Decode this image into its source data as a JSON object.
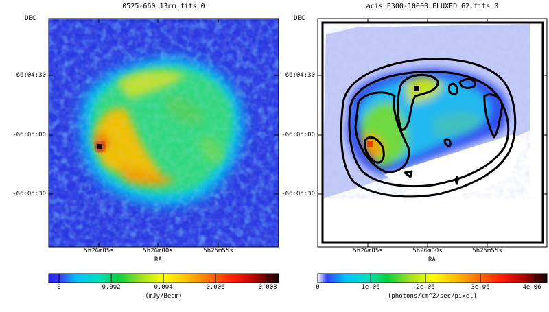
{
  "panels": [
    {
      "title": "0525-660_13cm.fits_0",
      "dec_label": "DEC",
      "ra_label": "RA",
      "dec_ticks": [
        "-66:04:30",
        "-66:05:00",
        "-66:05:30"
      ],
      "ra_ticks": [
        "5h26m05s",
        "5h26m00s",
        "5h25m55s"
      ],
      "colorbar": {
        "ticks": [
          "0",
          "0.002",
          "0.004",
          "0.006",
          "0.008"
        ],
        "units": "(mJy/Beam)"
      }
    },
    {
      "title": "acis_E300-10000_FLUXED_G2.fits_0",
      "dec_label": "DEC",
      "ra_label": "RA",
      "dec_ticks": [
        "-66:04:30",
        "-66:05:00",
        "-66:05:30"
      ],
      "ra_ticks": [
        "5h26m05s",
        "5h26m00s",
        "5h25m55s"
      ],
      "colorbar": {
        "ticks": [
          "0",
          "1e-06",
          "2e-06",
          "3e-06",
          "4e-06"
        ],
        "units": "(photons/cm^2/sec/pixel)"
      }
    }
  ],
  "colors": {
    "background_blue": "#2a3bd8",
    "colormap": [
      "#ffffff",
      "#3030e0",
      "#00c8f0",
      "#00d060",
      "#c8e020",
      "#f0d000",
      "#f08000",
      "#f01000",
      "#800000",
      "#000000"
    ]
  }
}
